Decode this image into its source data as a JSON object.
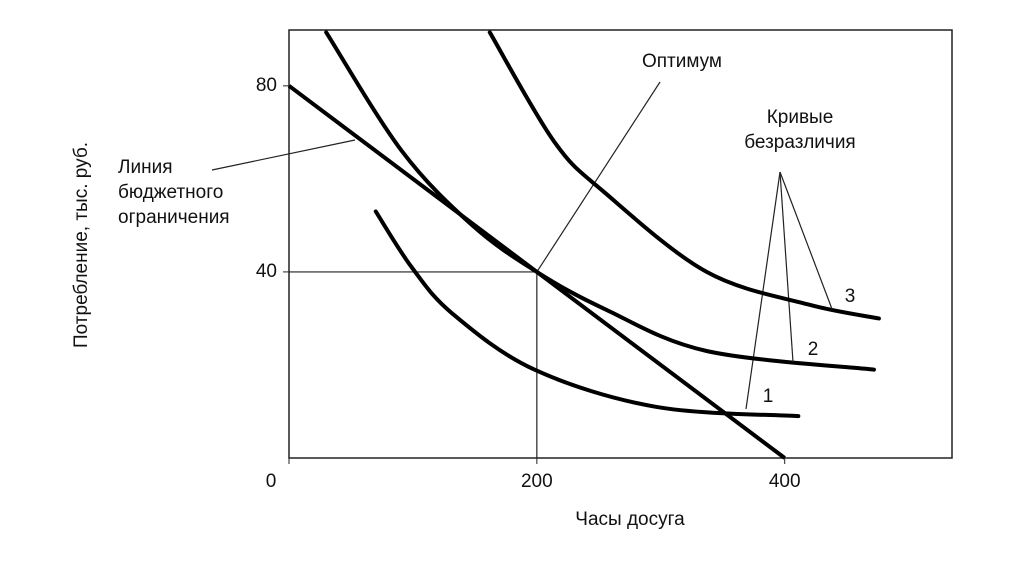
{
  "chart_data": {
    "type": "line",
    "x_label": "Часы досуга",
    "y_label": "Потребление, тыс. руб.",
    "xlim": [
      0,
      535
    ],
    "ylim": [
      0,
      92
    ],
    "xticks": [
      0,
      200,
      400
    ],
    "yticks": [
      40,
      80
    ],
    "budget": {
      "name": [
        "Линия",
        "бюджетного",
        "ограничения"
      ],
      "color": "#000000",
      "x": [
        0,
        400
      ],
      "values": [
        80,
        0
      ]
    },
    "optimum": {
      "label": "Оптимум",
      "x": 200,
      "y": 40
    },
    "curves_label": [
      "Кривые",
      "безразличия"
    ],
    "series": [
      {
        "name": "1",
        "color": "#000000",
        "x": [
          70,
          99,
          132,
          198,
          296,
          411
        ],
        "values": [
          53,
          41,
          31,
          19,
          11,
          9
        ]
      },
      {
        "name": "2",
        "color": "#000000",
        "x": [
          30,
          91,
          148,
          200,
          255,
          337,
          472
        ],
        "values": [
          91.5,
          66,
          50,
          40,
          32,
          23,
          19
        ]
      },
      {
        "name": "3",
        "color": "#000000",
        "x": [
          162,
          214,
          255,
          337,
          419,
          476
        ],
        "values": [
          91.5,
          68,
          57,
          40,
          33,
          30
        ]
      }
    ]
  }
}
